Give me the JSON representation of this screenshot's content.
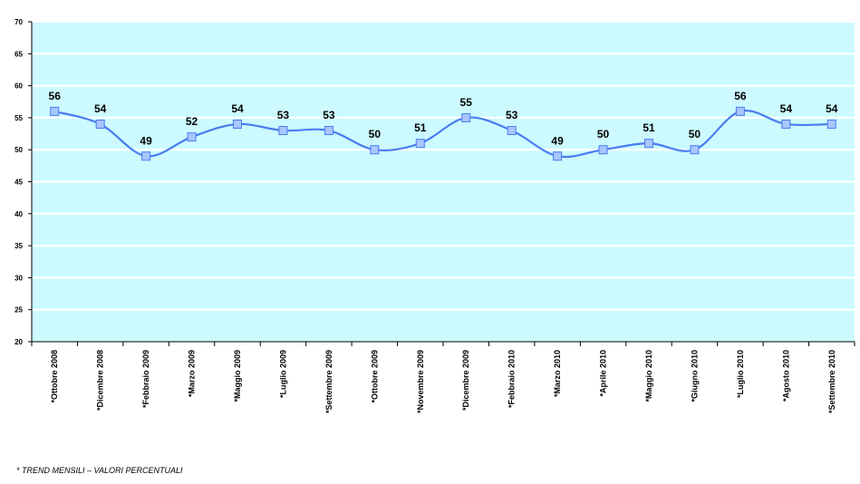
{
  "colors": {
    "plot_background": "#ccfaff",
    "gridline": "#ffffff",
    "line": "#4a7cf0",
    "marker_fill": "#a9c6ff",
    "marker_stroke": "#4a7cf0",
    "text": "#000000"
  },
  "footnote": "* TREND MENSILI – VALORI PERCENTUALI",
  "chart_data": {
    "type": "line",
    "title": "",
    "xlabel": "",
    "ylabel": "",
    "ylim": [
      20,
      70
    ],
    "yticks": [
      20,
      25,
      30,
      35,
      40,
      45,
      50,
      55,
      60,
      65,
      70
    ],
    "grid": true,
    "smooth": true,
    "markers": "square",
    "data_labels": true,
    "categories": [
      "*Ottobre 2008",
      "*Dicembre 2008",
      "*Febbraio 2009",
      "*Marzo 2009",
      "*Maggio 2009",
      "*Luglio 2009",
      "*Settembre 2009",
      "*Ottobre 2009",
      "*Novembre 2009",
      "*Dicembre 2009",
      "*Febbraio 2010",
      "*Marzo 2010",
      "*Aprile 2010",
      "*Maggio 2010",
      "*Giugno 2010",
      "*Luglio 2010",
      "*Agosto 2010",
      "*Settembre 2010"
    ],
    "values": [
      56,
      54,
      49,
      52,
      54,
      53,
      53,
      50,
      51,
      55,
      53,
      49,
      50,
      51,
      50,
      56,
      54,
      54
    ]
  }
}
